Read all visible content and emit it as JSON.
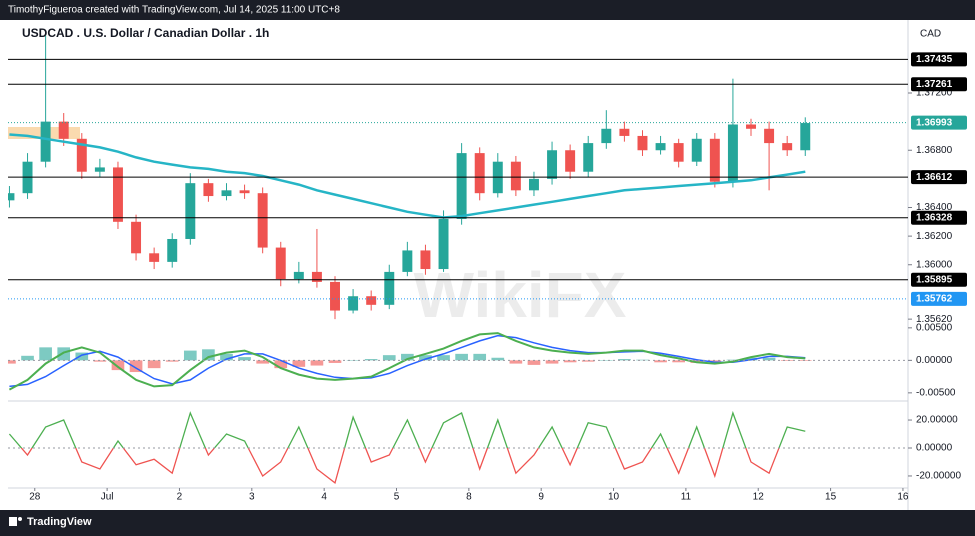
{
  "attribution": "TimothyFigueroa created with TradingView.com, Jul 14, 2025 11:00 UTC+8",
  "footer": "TradingView",
  "watermark": "WikiFX",
  "chart_data": [
    {
      "type": "candlestick",
      "title": "USDCAD . U.S. Dollar / Canadian Dollar . 1h",
      "currency": "CAD",
      "x": [
        -0.35,
        -0.1,
        0.15,
        0.4,
        0.65,
        0.9,
        1.15,
        1.4,
        1.65,
        1.9,
        2.15,
        2.4,
        2.65,
        2.9,
        3.15,
        3.4,
        3.65,
        3.9,
        4.15,
        4.4,
        4.65,
        4.9,
        5.15,
        5.4,
        5.65,
        5.9,
        6.15,
        6.4,
        6.65,
        6.9,
        7.15,
        7.4,
        7.65,
        7.9,
        8.15,
        8.4,
        8.65,
        8.9,
        9.15,
        9.4,
        9.65,
        9.9,
        10.15,
        10.4,
        10.65
      ],
      "open": [
        1.3645,
        1.365,
        1.3672,
        1.37,
        1.3688,
        1.3665,
        1.3668,
        1.363,
        1.3608,
        1.3602,
        1.3618,
        1.3657,
        1.3648,
        1.3652,
        1.365,
        1.3612,
        1.359,
        1.3595,
        1.3588,
        1.3568,
        1.3578,
        1.3572,
        1.3595,
        1.361,
        1.3597,
        1.3632,
        1.3678,
        1.365,
        1.3672,
        1.3652,
        1.366,
        1.368,
        1.3665,
        1.3685,
        1.3695,
        1.369,
        1.368,
        1.3685,
        1.3672,
        1.3688,
        1.3658,
        1.3698,
        1.3695,
        1.3685,
        1.368
      ],
      "high": [
        1.3655,
        1.3678,
        1.376,
        1.3706,
        1.3692,
        1.3674,
        1.3672,
        1.3635,
        1.3612,
        1.3622,
        1.3664,
        1.366,
        1.3657,
        1.3656,
        1.3654,
        1.3616,
        1.3602,
        1.3625,
        1.3592,
        1.3583,
        1.3582,
        1.36,
        1.3616,
        1.3614,
        1.3638,
        1.3685,
        1.3682,
        1.3678,
        1.3676,
        1.3665,
        1.3686,
        1.3684,
        1.369,
        1.3708,
        1.37,
        1.3694,
        1.369,
        1.3688,
        1.3692,
        1.3692,
        1.373,
        1.3702,
        1.37,
        1.369,
        1.3703
      ],
      "low": [
        1.364,
        1.3646,
        1.3668,
        1.3683,
        1.366,
        1.3661,
        1.3625,
        1.3603,
        1.3597,
        1.3598,
        1.3614,
        1.3644,
        1.3645,
        1.3646,
        1.3608,
        1.3585,
        1.3587,
        1.3584,
        1.3562,
        1.3566,
        1.3568,
        1.3569,
        1.3592,
        1.3593,
        1.3595,
        1.3628,
        1.3645,
        1.3647,
        1.3648,
        1.3648,
        1.3656,
        1.366,
        1.3661,
        1.3681,
        1.3686,
        1.3676,
        1.3677,
        1.3668,
        1.3669,
        1.3654,
        1.3654,
        1.369,
        1.3652,
        1.3676,
        1.3676
      ],
      "close": [
        1.365,
        1.3672,
        1.37,
        1.3688,
        1.3665,
        1.3668,
        1.363,
        1.3608,
        1.3602,
        1.3618,
        1.3657,
        1.3648,
        1.3652,
        1.365,
        1.3612,
        1.359,
        1.3595,
        1.3588,
        1.3568,
        1.3578,
        1.3572,
        1.3595,
        1.361,
        1.3597,
        1.3632,
        1.3678,
        1.365,
        1.3672,
        1.3652,
        1.366,
        1.368,
        1.3665,
        1.3685,
        1.3695,
        1.369,
        1.368,
        1.3685,
        1.3672,
        1.3688,
        1.3658,
        1.3698,
        1.3695,
        1.3685,
        1.368,
        1.3699
      ],
      "up_color": "#26a69a",
      "down_color": "#ef5350",
      "ma": {
        "color": "#26b5c6",
        "values": [
          1.3691,
          1.369,
          1.3688,
          1.3686,
          1.3684,
          1.3682,
          1.3679,
          1.3675,
          1.3672,
          1.367,
          1.3668,
          1.3667,
          1.3665,
          1.3664,
          1.3662,
          1.3659,
          1.3656,
          1.3652,
          1.3649,
          1.3646,
          1.3643,
          1.364,
          1.3637,
          1.3635,
          1.3633,
          1.3634,
          1.3636,
          1.3638,
          1.364,
          1.3642,
          1.3644,
          1.3646,
          1.3648,
          1.365,
          1.3652,
          1.3653,
          1.3654,
          1.3655,
          1.3656,
          1.3657,
          1.3658,
          1.3659,
          1.3661,
          1.3663,
          1.3665
        ]
      },
      "levels": [
        1.37435,
        1.37261,
        1.36612,
        1.36328,
        1.35895
      ],
      "level_color": "#000000",
      "price_line": {
        "value": 1.36993,
        "color": "#26a69a"
      },
      "marker_line": {
        "value": 1.35762,
        "color": "#2196f3"
      },
      "xlim": [
        -0.37,
        12.07
      ],
      "xticks": [
        {
          "value": 0,
          "label": "28"
        },
        {
          "value": 1,
          "label": "Jul"
        },
        {
          "value": 2,
          "label": "2"
        },
        {
          "value": 3,
          "label": "3"
        },
        {
          "value": 4,
          "label": "4"
        },
        {
          "value": 5,
          "label": "5"
        },
        {
          "value": 6,
          "label": "8"
        },
        {
          "value": 7,
          "label": "9"
        },
        {
          "value": 8,
          "label": "10"
        },
        {
          "value": 9,
          "label": "11"
        },
        {
          "value": 10,
          "label": "12"
        },
        {
          "value": 11,
          "label": "15"
        },
        {
          "value": 12,
          "label": "16"
        }
      ],
      "ylim": [
        1.356,
        1.3771
      ],
      "yticks": [
        {
          "value": 1.372,
          "label": "1.37200"
        },
        {
          "value": 1.368,
          "label": "1.36800"
        },
        {
          "value": 1.364,
          "label": "1.36400"
        },
        {
          "value": 1.362,
          "label": "1.36200"
        },
        {
          "value": 1.36,
          "label": "1.36000"
        },
        {
          "value": 1.3562,
          "label": "1.35620"
        }
      ]
    },
    {
      "type": "macd",
      "macd": {
        "color": "#4caf50",
        "values": [
          -0.0045,
          -0.003,
          -0.0005,
          0.0012,
          0.002,
          0.0012,
          -0.001,
          -0.003,
          -0.004,
          -0.0038,
          -0.0015,
          0.0005,
          0.0012,
          0.0015,
          0.0005,
          -0.0012,
          -0.0022,
          -0.0028,
          -0.003,
          -0.0028,
          -0.0025,
          -0.0012,
          0.0002,
          0.001,
          0.0018,
          0.003,
          0.004,
          0.0042,
          0.003,
          0.002,
          0.0015,
          0.0012,
          0.001,
          0.0012,
          0.0015,
          0.0015,
          0.0008,
          0.0003,
          -0.0003,
          -0.0005,
          -0.0002,
          0.0005,
          0.001,
          0.0005,
          0.0003
        ]
      },
      "signal": {
        "color": "#2962ff",
        "values": [
          -0.004,
          -0.0037,
          -0.0025,
          -0.0008,
          0.0008,
          0.0014,
          0.0005,
          -0.0012,
          -0.0028,
          -0.0036,
          -0.003,
          -0.0012,
          0.0002,
          0.001,
          0.001,
          0.0,
          -0.0012,
          -0.002,
          -0.0026,
          -0.0028,
          -0.0027,
          -0.002,
          -0.0008,
          0.0002,
          0.001,
          0.002,
          0.003,
          0.0038,
          0.0035,
          0.0027,
          0.002,
          0.0015,
          0.0012,
          0.0012,
          0.0013,
          0.0014,
          0.0011,
          0.0006,
          0.0001,
          -0.0003,
          -0.0003,
          0.0001,
          0.0006,
          0.0006,
          0.0004
        ]
      },
      "histogram": {
        "up_color": "#26a69a",
        "down_color": "#ef5350",
        "values": [
          -0.0005,
          0.0007,
          0.002,
          0.002,
          0.0012,
          -0.0002,
          -0.0015,
          -0.0018,
          -0.0012,
          -0.0002,
          0.0015,
          0.0017,
          0.001,
          0.0005,
          -0.0005,
          -0.0012,
          -0.001,
          -0.0008,
          -0.0004,
          0.0,
          0.0002,
          0.0008,
          0.001,
          0.0008,
          0.0008,
          0.001,
          0.001,
          0.0004,
          -0.0005,
          -0.0007,
          -0.0005,
          -0.0003,
          -0.0002,
          0.0,
          0.0002,
          0.0001,
          -0.0003,
          -0.0003,
          -0.0004,
          -0.0002,
          0.0001,
          0.0004,
          0.0004,
          -0.0001,
          -0.0001
        ]
      },
      "ylim": [
        -0.0061,
        0.0059
      ],
      "yticks": [
        {
          "value": 0.005,
          "label": "0.00500"
        },
        {
          "value": 0,
          "label": "0.00000"
        },
        {
          "value": -0.005,
          "label": "-0.00500"
        }
      ]
    },
    {
      "type": "oscillator",
      "values": [
        10,
        -5,
        15,
        20,
        -10,
        -15,
        5,
        -12,
        -8,
        -18,
        25,
        -5,
        10,
        5,
        -20,
        -10,
        15,
        -15,
        -25,
        22,
        -10,
        -5,
        20,
        -10,
        18,
        25,
        -15,
        20,
        -18,
        -5,
        15,
        -12,
        18,
        15,
        -15,
        -10,
        10,
        -18,
        15,
        -20,
        25,
        -10,
        -18,
        15,
        12
      ],
      "above_color": "#4caf50",
      "below_color": "#ef5350",
      "ylim": [
        -27.9,
        32.9
      ],
      "yticks": [
        {
          "value": 20,
          "label": "20.00000"
        },
        {
          "value": 0,
          "label": "0.00000"
        },
        {
          "value": -20,
          "label": "-20.00000"
        }
      ]
    }
  ]
}
